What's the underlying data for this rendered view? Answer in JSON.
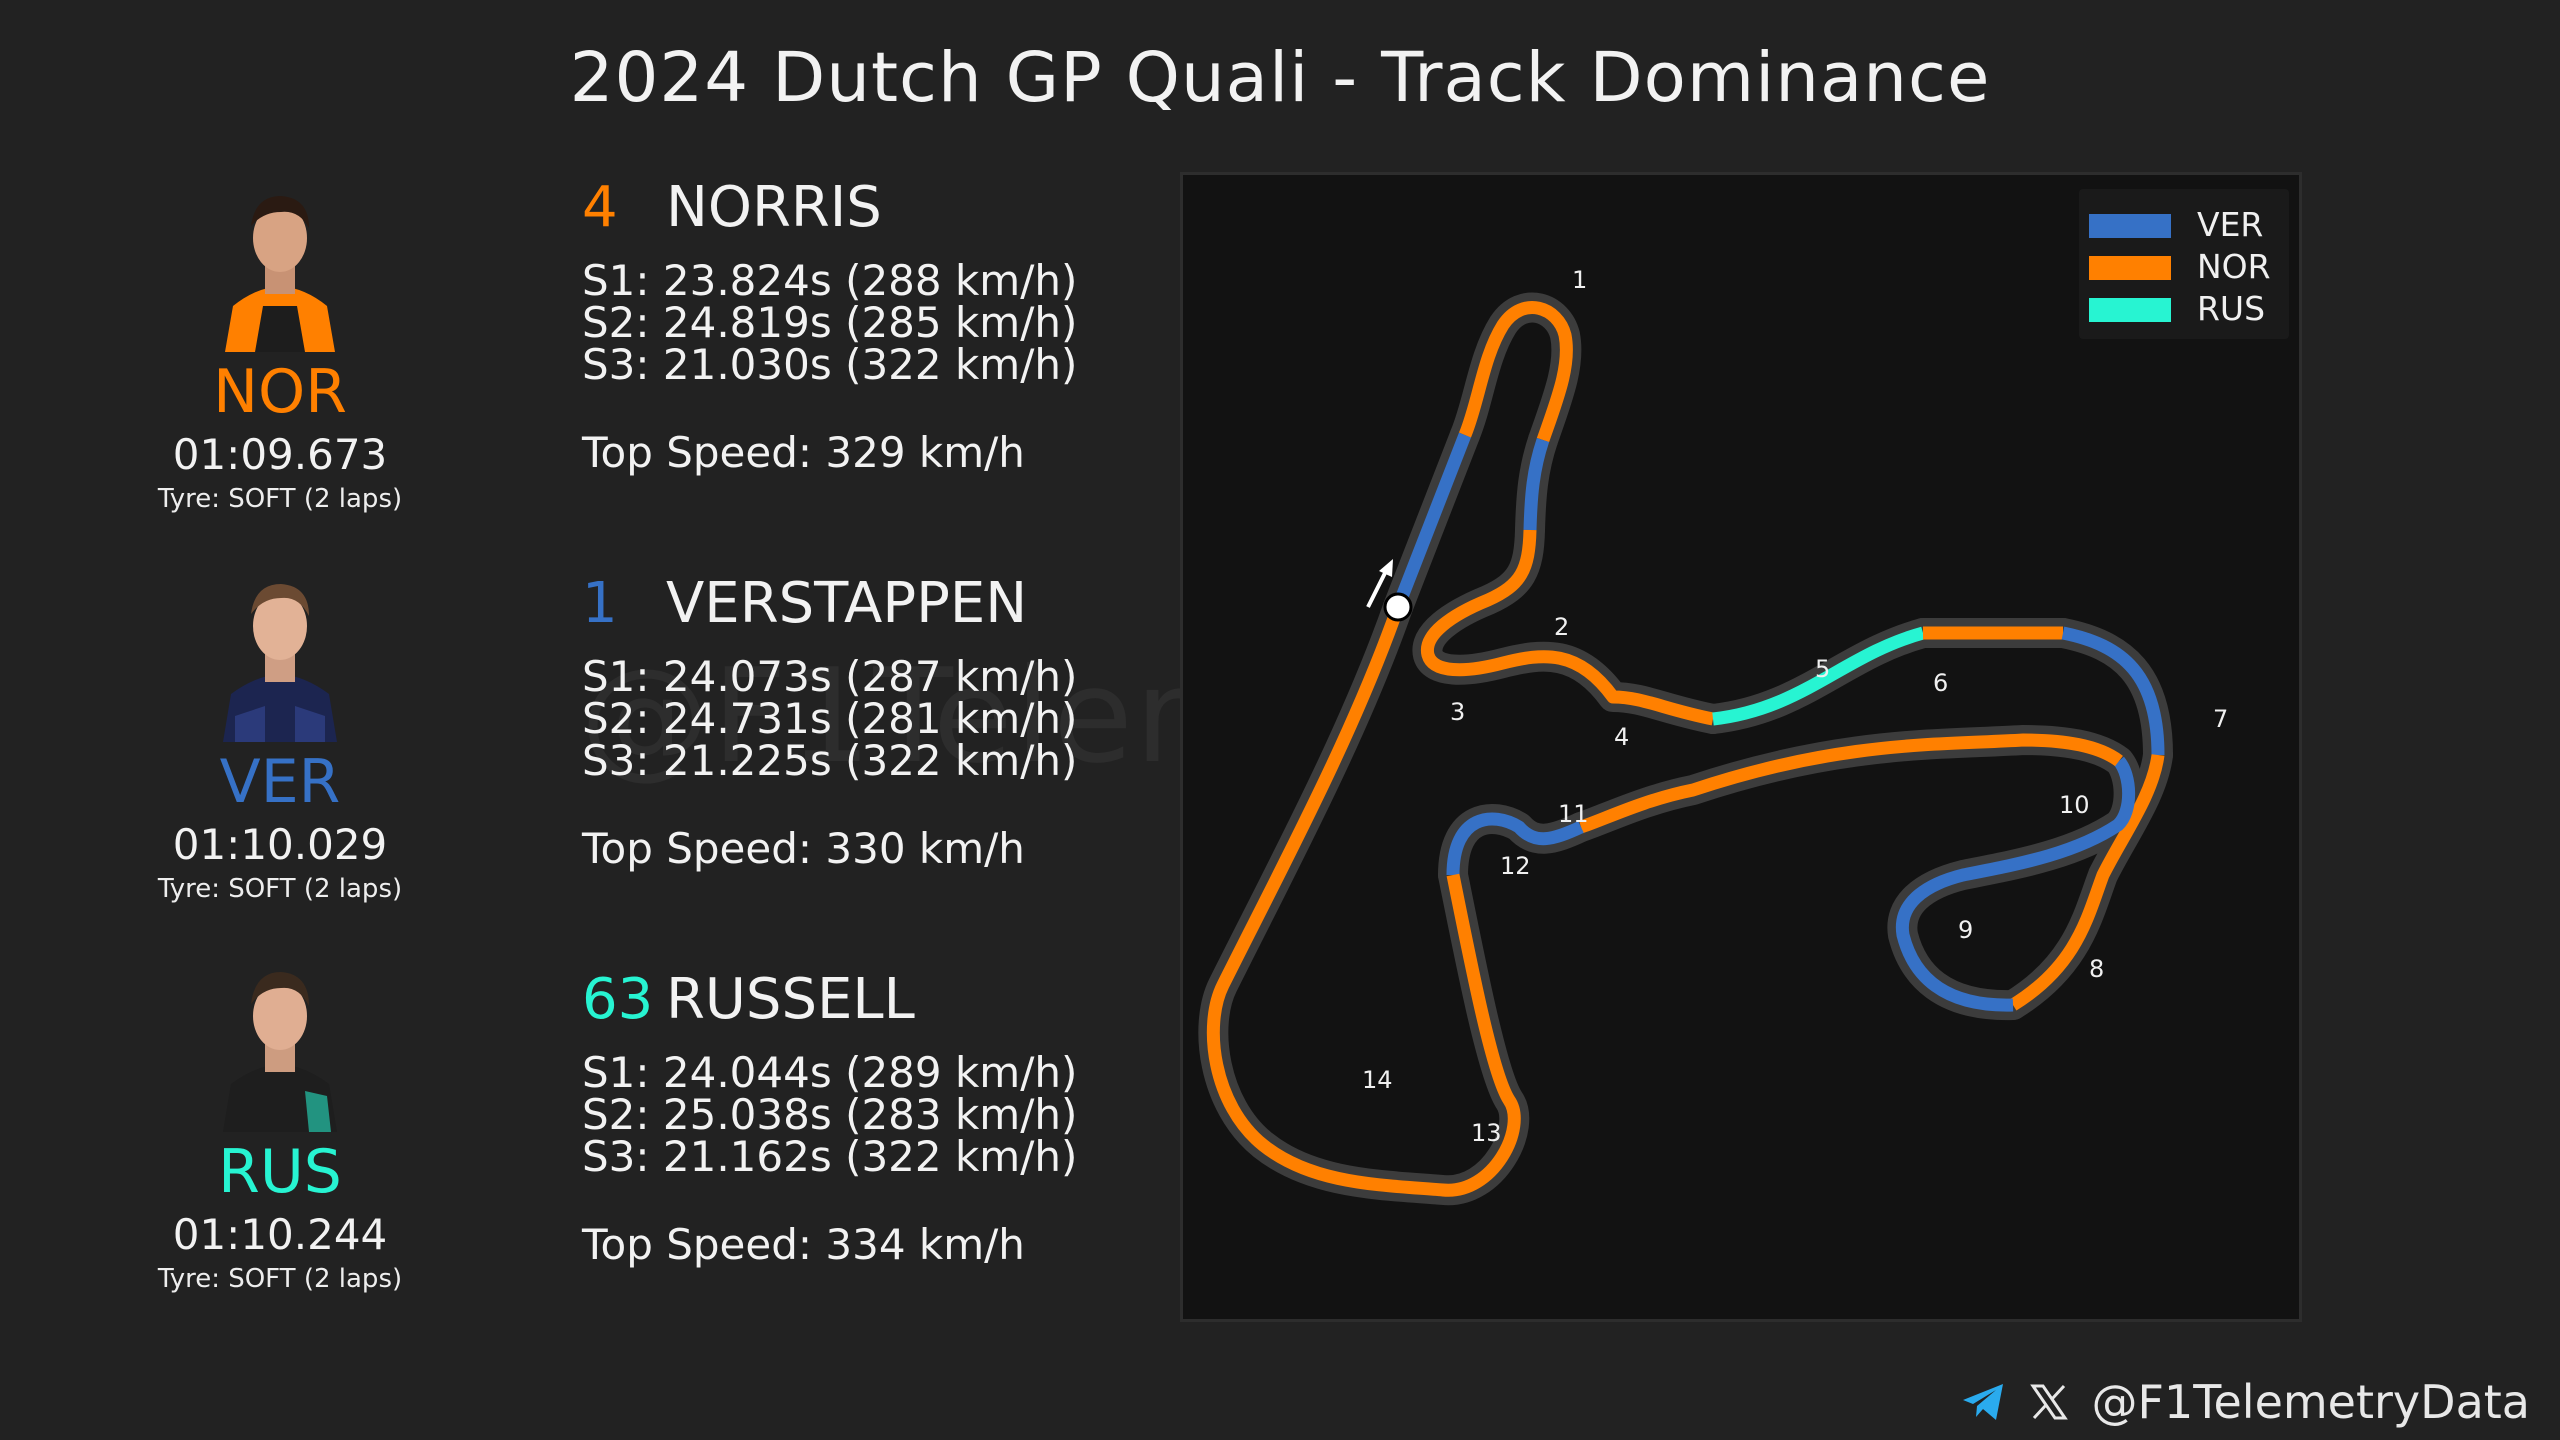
{
  "title": "2024 Dutch GP Quali - Track Dominance",
  "colors": {
    "VER": "#3671c6",
    "NOR": "#ff8000",
    "RUS": "#27f4d2",
    "background": "#222222",
    "panel": "#121212"
  },
  "drivers": [
    {
      "abbr": "NOR",
      "number": "4",
      "name": "NORRIS",
      "laptime": "01:09.673",
      "tyre": "Tyre: SOFT (2 laps)",
      "s1": "S1:  23.824s  (288 km/h)",
      "s2": "S2:  24.819s  (285 km/h)",
      "s3": "S3:  21.030s  (322 km/h)",
      "top_speed": "Top Speed: 329 km/h",
      "color": "#ff8000"
    },
    {
      "abbr": "VER",
      "number": "1",
      "name": "VERSTAPPEN",
      "laptime": "01:10.029",
      "tyre": "Tyre: SOFT (2 laps)",
      "s1": "S1:  24.073s  (287 km/h)",
      "s2": "S2:  24.731s  (281 km/h)",
      "s3": "S3:  21.225s  (322 km/h)",
      "top_speed": "Top Speed: 330 km/h",
      "color": "#3671c6"
    },
    {
      "abbr": "RUS",
      "number": "63",
      "name": "RUSSELL",
      "laptime": "01:10.244",
      "tyre": "Tyre: SOFT (2 laps)",
      "s1": "S1:  24.044s  (289 km/h)",
      "s2": "S2:  25.038s  (283 km/h)",
      "s3": "S3:  21.162s  (322 km/h)",
      "top_speed": "Top Speed: 334 km/h",
      "color": "#27f4d2"
    }
  ],
  "watermark": "@F1TelemetryData",
  "footer": {
    "handle": "@F1TelemetryData",
    "icons": [
      "telegram-icon",
      "x-icon"
    ]
  },
  "chart_data": {
    "type": "track-dominance-map",
    "legend": [
      "VER",
      "NOR",
      "RUS"
    ],
    "legend_placement": "top-right",
    "corner_labels": [
      "1",
      "2",
      "3",
      "4",
      "5",
      "6",
      "7",
      "8",
      "9",
      "10",
      "11",
      "12",
      "13",
      "14"
    ],
    "segments": [
      {
        "from": "start",
        "to": "turn-1 approach",
        "fastest": "VER"
      },
      {
        "from": "turn-1",
        "to": "turn-1 exit",
        "fastest": "NOR"
      },
      {
        "from": "turn-1 exit",
        "to": "turn-2",
        "fastest": "VER"
      },
      {
        "from": "turn-2",
        "to": "turn-5",
        "fastest": "NOR"
      },
      {
        "from": "turn-5",
        "to": "turn-6",
        "fastest": "RUS"
      },
      {
        "from": "turn-6",
        "to": "turn-7",
        "fastest": "NOR"
      },
      {
        "from": "turn-7",
        "to": "turn-7 exit",
        "fastest": "VER"
      },
      {
        "from": "turn-7 exit",
        "to": "turn-8",
        "fastest": "NOR"
      },
      {
        "from": "turn-8",
        "to": "turn-10",
        "fastest": "VER"
      },
      {
        "from": "turn-10",
        "to": "turn-11",
        "fastest": "NOR"
      },
      {
        "from": "turn-11",
        "to": "turn-12",
        "fastest": "VER"
      },
      {
        "from": "turn-12",
        "to": "finish",
        "fastest": "NOR"
      }
    ]
  }
}
